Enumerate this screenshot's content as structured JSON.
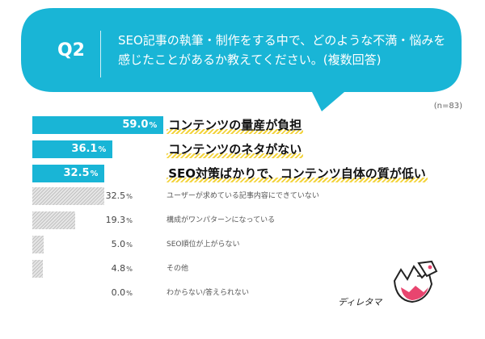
{
  "question": {
    "number": "Q2",
    "text_line1": "SEO記事の執筆・制作をする中で、どのような不満・悩みを",
    "text_line2": "感じたことがあるか教えてください。(複数回答)"
  },
  "sample_size": "(n=83)",
  "brand": "ディレタマ",
  "colors": {
    "accent": "#19b5d6",
    "highlight": "#f3d33c",
    "other_bar": "#e6e6e6"
  },
  "chart_data": {
    "type": "bar",
    "orientation": "horizontal",
    "xlim": [
      0,
      100
    ],
    "unit": "%",
    "categories": [
      "コンテンツの量産が負担",
      "コンテンツのネタがない",
      "SEO対策ばかりで、コンテンツ自体の質が低い",
      "ユーザーが求めている記事内容にできていない",
      "構成がワンパターンになっている",
      "SEO順位が上がらない",
      "その他",
      "わからない/答えられない"
    ],
    "values": [
      59.0,
      36.1,
      32.5,
      32.5,
      19.3,
      5.0,
      4.8,
      0.0
    ],
    "value_labels": [
      "59.0",
      "36.1",
      "32.5",
      "32.5",
      "19.3",
      "5.0",
      "4.8",
      "0.0"
    ],
    "highlighted_top": 3
  }
}
